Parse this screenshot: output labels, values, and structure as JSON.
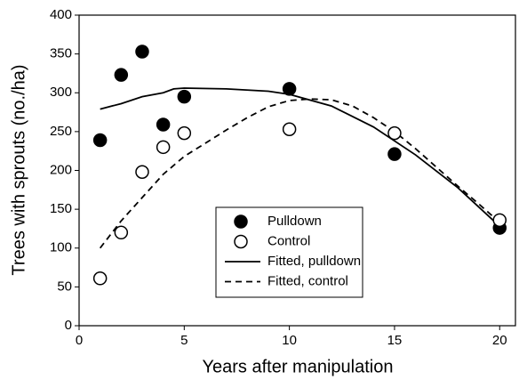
{
  "chart_data": {
    "type": "scatter",
    "xlabel": "Years after manipulation",
    "ylabel": "Trees with sprouts (no./ha)",
    "xlim": [
      0,
      20.75
    ],
    "ylim": [
      0,
      400
    ],
    "xticks": [
      0,
      5,
      10,
      15,
      20
    ],
    "yticks": [
      0,
      50,
      100,
      150,
      200,
      250,
      300,
      350,
      400
    ],
    "legend": "center",
    "series": [
      {
        "name": "Pulldown",
        "color": "#000000",
        "marker": "filled",
        "x": [
          1,
          2,
          3,
          4,
          5,
          10,
          15,
          20
        ],
        "values": [
          239,
          323,
          353,
          259,
          295,
          305,
          221,
          126
        ]
      },
      {
        "name": "Control",
        "color": "#000000",
        "marker": "open",
        "x": [
          1,
          2,
          3,
          4,
          5,
          10,
          15,
          20
        ],
        "values": [
          61,
          120,
          198,
          230,
          248,
          253,
          248,
          136
        ]
      },
      {
        "name": "Fitted, pulldown",
        "color": "#000000",
        "line": "solid",
        "x": [
          1,
          2,
          3,
          4,
          4.5,
          5,
          7,
          9,
          10,
          12,
          14,
          16,
          18,
          20
        ],
        "values": [
          279,
          286,
          295,
          300,
          305,
          306,
          305,
          302,
          298,
          283,
          256,
          220,
          178,
          128
        ]
      },
      {
        "name": "Fitted, control",
        "color": "#000000",
        "line": "dashed",
        "x": [
          1,
          2,
          3,
          4,
          5,
          6,
          7,
          8,
          9,
          10,
          11,
          12,
          13,
          14,
          15,
          16,
          17,
          18,
          19,
          20
        ],
        "values": [
          100,
          135,
          165,
          195,
          218,
          235,
          252,
          268,
          282,
          290,
          292,
          291,
          283,
          268,
          250,
          228,
          204,
          180,
          157,
          133
        ]
      }
    ]
  }
}
